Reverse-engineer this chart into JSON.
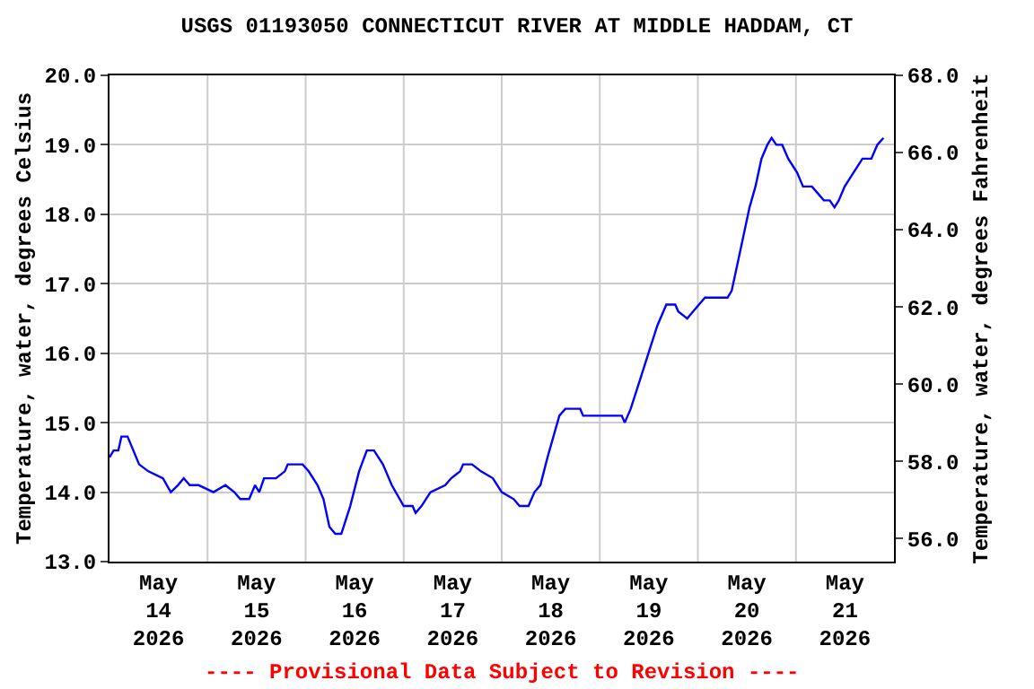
{
  "chart_data": {
    "type": "line",
    "title": "USGS 01193050 CONNECTICUT RIVER AT MIDDLE HADDAM, CT",
    "ylabel": "Temperature, water, degrees Celsius",
    "y2label": "Temperature, water, degrees Fahrenheit",
    "annotations": [
      "---- Provisional Data Subject to Revision ----"
    ],
    "series": [
      {
        "color": "#0000ff",
        "x": [
          "2026-05-14T00:00",
          "2026-05-14T01:00",
          "2026-05-14T02:10",
          "2026-05-14T02:55",
          "2026-05-14T04:25",
          "2026-05-14T05:50",
          "2026-05-14T07:15",
          "2026-05-14T09:30",
          "2026-05-14T13:05",
          "2026-05-14T15:00",
          "2026-05-14T16:45",
          "2026-05-14T18:10",
          "2026-05-14T19:38",
          "2026-05-14T21:49",
          "2026-05-15T01:27",
          "2026-05-15T04:22",
          "2026-05-15T06:33",
          "2026-05-15T08:00",
          "2026-05-15T10:11",
          "2026-05-15T11:38",
          "2026-05-15T12:39",
          "2026-05-15T13:49",
          "2026-05-15T16:44",
          "2026-05-15T18:55",
          "2026-05-15T19:38",
          "2026-05-15T23:16",
          "2026-05-16T00:44",
          "2026-05-16T02:55",
          "2026-05-16T04:22",
          "2026-05-16T05:49",
          "2026-05-16T07:16",
          "2026-05-16T08:44",
          "2026-05-16T10:55",
          "2026-05-16T13:05",
          "2026-05-16T14:59",
          "2026-05-16T16:44",
          "2026-05-16T18:55",
          "2026-05-16T21:05",
          "2026-05-17T00:00",
          "2026-05-17T02:11",
          "2026-05-17T02:55",
          "2026-05-17T04:22",
          "2026-05-17T06:33",
          "2026-05-17T10:11",
          "2026-05-17T11:38",
          "2026-05-17T13:49",
          "2026-05-17T14:33",
          "2026-05-17T16:44",
          "2026-05-17T18:55",
          "2026-05-17T21:49",
          "2026-05-18T00:00",
          "2026-05-18T02:55",
          "2026-05-18T04:22",
          "2026-05-18T06:33",
          "2026-05-18T08:00",
          "2026-05-18T09:27",
          "2026-05-18T11:12",
          "2026-05-18T12:39",
          "2026-05-18T14:06",
          "2026-05-18T15:34",
          "2026-05-18T19:12",
          "2026-05-18T19:55",
          "2026-05-19T05:23",
          "2026-05-19T06:06",
          "2026-05-19T07:34",
          "2026-05-19T09:45",
          "2026-05-19T11:55",
          "2026-05-19T14:06",
          "2026-05-19T16:17",
          "2026-05-19T18:28",
          "2026-05-19T19:12",
          "2026-05-19T21:23",
          "2026-05-19T22:50",
          "2026-05-20T00:17",
          "2026-05-20T01:44",
          "2026-05-20T07:16",
          "2026-05-20T08:17",
          "2026-05-20T09:45",
          "2026-05-20T11:12",
          "2026-05-20T12:39",
          "2026-05-20T14:06",
          "2026-05-20T15:34",
          "2026-05-20T17:01",
          "2026-05-20T18:03",
          "2026-05-20T19:12",
          "2026-05-20T20:39",
          "2026-05-20T22:07",
          "2026-05-21T00:17",
          "2026-05-21T01:44",
          "2026-05-21T03:55",
          "2026-05-21T05:23",
          "2026-05-21T06:50",
          "2026-05-21T08:17",
          "2026-05-21T09:27",
          "2026-05-21T10:29",
          "2026-05-21T11:56",
          "2026-05-21T14:06",
          "2026-05-21T16:17",
          "2026-05-21T18:28",
          "2026-05-21T19:55",
          "2026-05-21T21:26"
        ],
        "values": [
          14.5,
          14.6,
          14.6,
          14.8,
          14.8,
          14.6,
          14.4,
          14.3,
          14.2,
          14.0,
          14.1,
          14.2,
          14.1,
          14.1,
          14.0,
          14.1,
          14.0,
          13.9,
          13.9,
          14.1,
          14.0,
          14.2,
          14.2,
          14.3,
          14.4,
          14.4,
          14.3,
          14.1,
          13.9,
          13.5,
          13.4,
          13.4,
          13.8,
          14.3,
          14.6,
          14.6,
          14.4,
          14.1,
          13.8,
          13.8,
          13.7,
          13.8,
          14.0,
          14.1,
          14.2,
          14.3,
          14.4,
          14.4,
          14.3,
          14.2,
          14.0,
          13.9,
          13.8,
          13.8,
          14.0,
          14.1,
          14.5,
          14.8,
          15.1,
          15.2,
          15.2,
          15.1,
          15.1,
          15.0,
          15.2,
          15.6,
          16.0,
          16.4,
          16.7,
          16.7,
          16.6,
          16.5,
          16.6,
          16.7,
          16.8,
          16.8,
          16.9,
          17.3,
          17.7,
          18.1,
          18.4,
          18.8,
          19.0,
          19.1,
          19.0,
          19.0,
          18.8,
          18.6,
          18.4,
          18.4,
          18.3,
          18.2,
          18.2,
          18.1,
          18.2,
          18.4,
          18.6,
          18.8,
          18.8,
          19.0,
          19.1
        ]
      }
    ],
    "xlim": [
      "2026-05-14T00:00",
      "2026-05-22T00:00"
    ],
    "xticks": [
      {
        "value": "2026-05-14T12:00",
        "label": "May\n14\n2026"
      },
      {
        "value": "2026-05-15T00:00",
        "label": null
      },
      {
        "value": "2026-05-15T12:00",
        "label": "May\n15\n2026"
      },
      {
        "value": "2026-05-16T00:00",
        "label": null
      },
      {
        "value": "2026-05-16T12:00",
        "label": "May\n16\n2026"
      },
      {
        "value": "2026-05-17T00:00",
        "label": null
      },
      {
        "value": "2026-05-17T12:00",
        "label": "May\n17\n2026"
      },
      {
        "value": "2026-05-18T00:00",
        "label": null
      },
      {
        "value": "2026-05-18T12:00",
        "label": "May\n18\n2026"
      },
      {
        "value": "2026-05-19T00:00",
        "label": null
      },
      {
        "value": "2026-05-19T12:00",
        "label": "May\n19\n2026"
      },
      {
        "value": "2026-05-20T00:00",
        "label": null
      },
      {
        "value": "2026-05-20T12:00",
        "label": "May\n20\n2026"
      },
      {
        "value": "2026-05-21T00:00",
        "label": null
      },
      {
        "value": "2026-05-21T12:00",
        "label": "May\n21\n2026"
      }
    ],
    "ylim": [
      13.0,
      20.0
    ],
    "yticks": [
      {
        "value": 13,
        "label": "13.0"
      },
      {
        "value": 14,
        "label": "14.0"
      },
      {
        "value": 15,
        "label": "15.0"
      },
      {
        "value": 16,
        "label": "16.0"
      },
      {
        "value": 17,
        "label": "17.0"
      },
      {
        "value": 18,
        "label": "18.0"
      },
      {
        "value": 19,
        "label": "19.0"
      },
      {
        "value": 20,
        "label": "20.0"
      }
    ],
    "y2lim": [
      55.4,
      68.0
    ],
    "y2ticks": [
      {
        "value": 56,
        "label": "56.0"
      },
      {
        "value": 58,
        "label": "58.0"
      },
      {
        "value": 60,
        "label": "60.0"
      },
      {
        "value": 62,
        "label": "62.0"
      },
      {
        "value": 64,
        "label": "64.0"
      },
      {
        "value": 66,
        "label": "66.0"
      },
      {
        "value": 68,
        "label": "68.0"
      }
    ],
    "grid": true
  }
}
